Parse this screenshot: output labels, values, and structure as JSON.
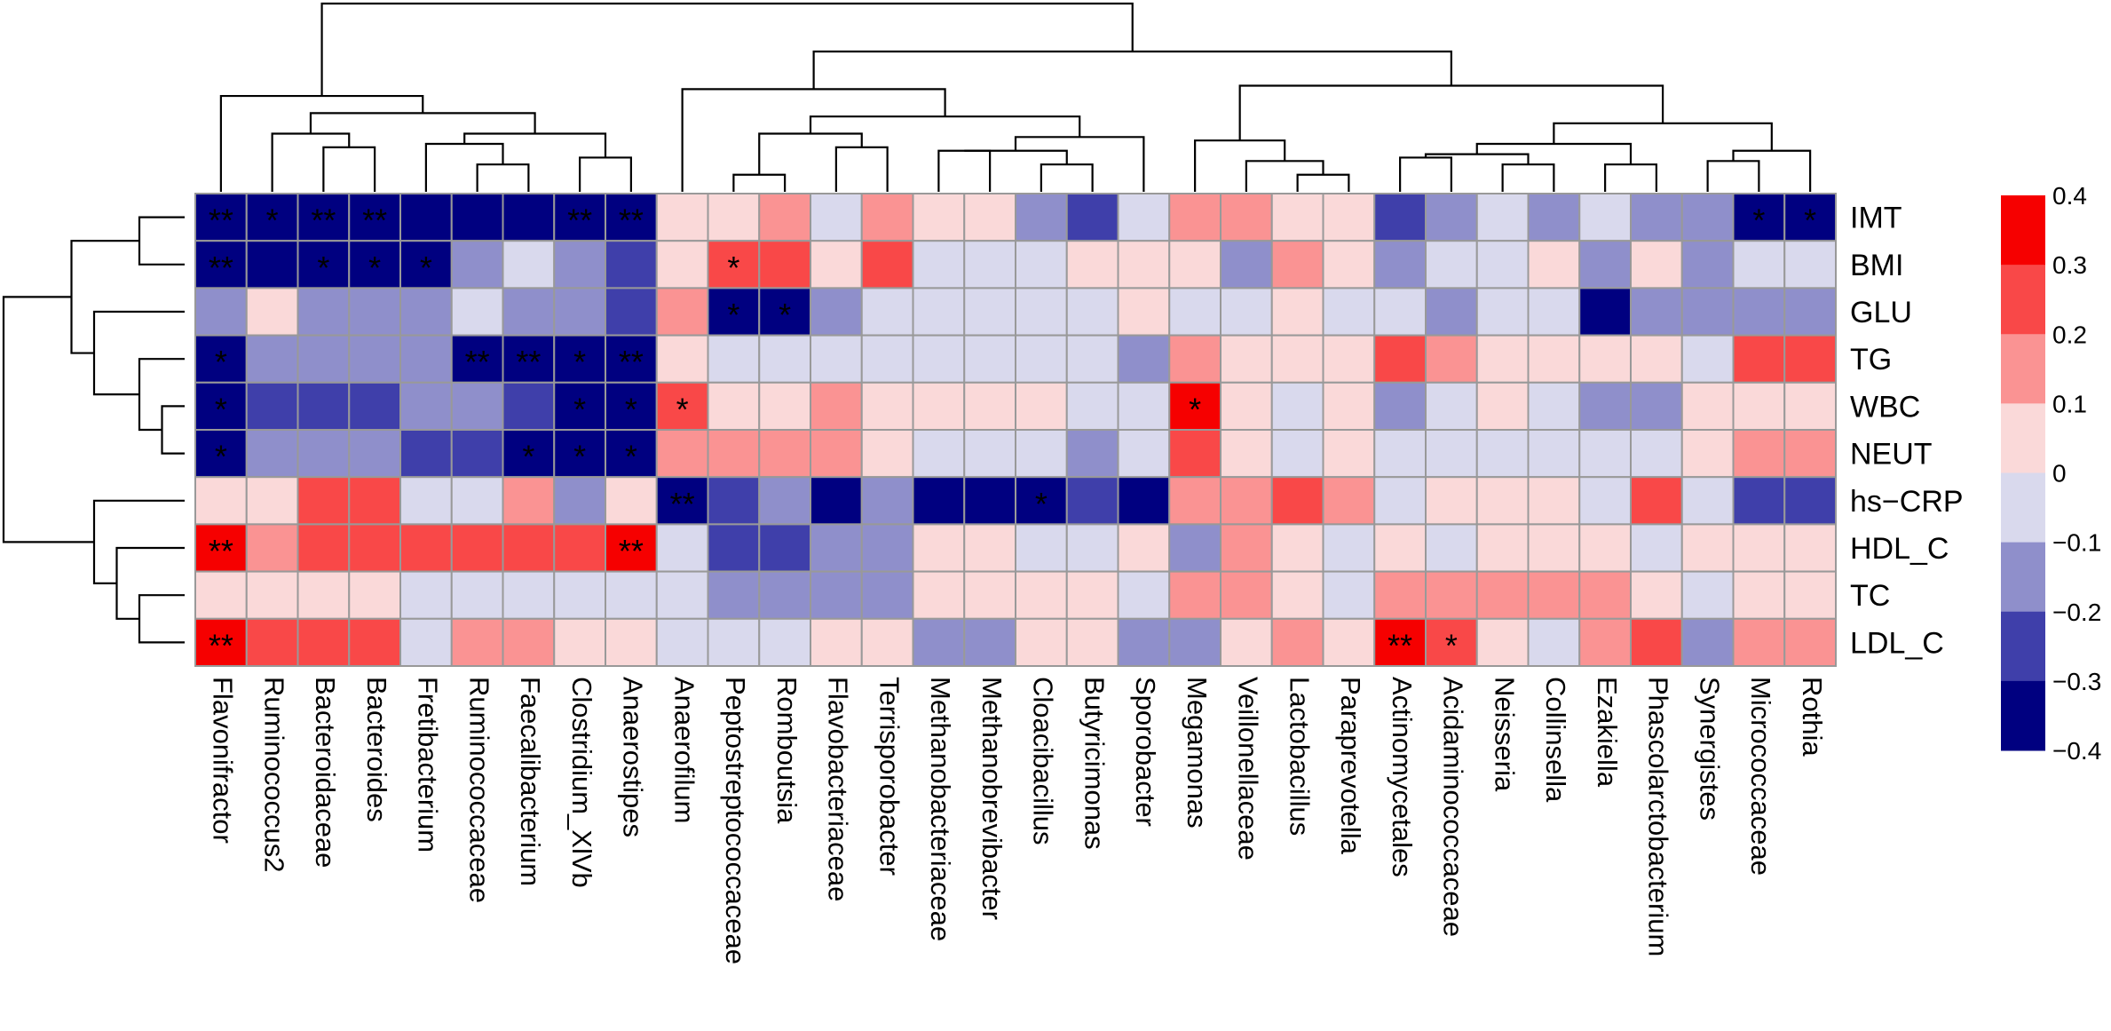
{
  "chart_data": {
    "type": "heatmap",
    "title": "",
    "xlabel": "",
    "ylabel": "",
    "rows": [
      "IMT",
      "BMI",
      "GLU",
      "TG",
      "WBC",
      "NEUT",
      "hs−CRP",
      "HDL_C",
      "TC",
      "LDL_C"
    ],
    "columns": [
      "Flavonifractor",
      "Ruminococcus2",
      "Bacteroidaceae",
      "Bacteroides",
      "Fretibacterium",
      "Ruminococcaceae",
      "Faecalibacterium",
      "Clostridium_XlVb",
      "Anaerostipes",
      "Anaerofilum",
      "Peptostreptococcaceae",
      "Romboutsia",
      "Flavobacteriaceae",
      "Terrisporobacter",
      "Methanobacteriaceae",
      "Methanobrevibacter",
      "Cloacibacillus",
      "Butyricimonas",
      "Sporobacter",
      "Megamonas",
      "Veillonellaceae",
      "Lactobacillus",
      "Paraprevotella",
      "Actinomycetales",
      "Acidaminococcaceae",
      "Neisseria",
      "Collinsella",
      "Ezakiella",
      "Phascolarctobacterium",
      "Synergistes",
      "Micrococcaceae",
      "Rothia"
    ],
    "values": [
      [
        -0.4,
        -0.4,
        -0.4,
        -0.4,
        -0.3,
        -0.3,
        -0.3,
        -0.4,
        -0.4,
        0.05,
        0.05,
        0.15,
        -0.05,
        0.15,
        0.05,
        0.05,
        -0.15,
        -0.25,
        -0.05,
        0.15,
        0.15,
        0.05,
        0.05,
        -0.25,
        -0.15,
        -0.05,
        -0.15,
        -0.05,
        -0.15,
        -0.15,
        -0.4,
        -0.4
      ],
      [
        -0.4,
        -0.3,
        -0.3,
        -0.3,
        -0.4,
        -0.15,
        -0.05,
        -0.15,
        -0.25,
        0.05,
        0.25,
        0.25,
        0.05,
        0.25,
        -0.05,
        -0.05,
        -0.05,
        0.05,
        0.05,
        0.05,
        -0.15,
        0.15,
        0.05,
        -0.15,
        -0.05,
        -0.05,
        0.05,
        -0.15,
        0.05,
        -0.15,
        -0.05,
        -0.05
      ],
      [
        -0.15,
        0.05,
        -0.15,
        -0.15,
        -0.15,
        -0.05,
        -0.15,
        -0.15,
        -0.25,
        0.15,
        -0.4,
        -0.4,
        -0.15,
        -0.05,
        -0.05,
        -0.05,
        -0.05,
        -0.05,
        0.05,
        -0.05,
        -0.05,
        0.05,
        -0.05,
        -0.05,
        -0.15,
        -0.05,
        -0.05,
        -0.3,
        -0.15,
        -0.15,
        -0.15,
        -0.15
      ],
      [
        -0.3,
        -0.15,
        -0.15,
        -0.15,
        -0.15,
        -0.4,
        -0.4,
        -0.3,
        -0.4,
        0.05,
        -0.05,
        -0.05,
        -0.05,
        -0.05,
        -0.05,
        -0.05,
        -0.05,
        -0.05,
        -0.15,
        0.15,
        0.05,
        0.05,
        0.05,
        0.25,
        0.15,
        0.05,
        0.05,
        0.05,
        0.05,
        -0.05,
        0.25,
        0.25
      ],
      [
        -0.3,
        -0.25,
        -0.25,
        -0.25,
        -0.15,
        -0.15,
        -0.25,
        -0.3,
        -0.4,
        0.25,
        0.05,
        0.05,
        0.15,
        0.05,
        0.05,
        0.05,
        0.05,
        -0.05,
        -0.05,
        0.35,
        0.05,
        -0.05,
        0.05,
        -0.15,
        -0.05,
        0.05,
        -0.05,
        -0.15,
        -0.15,
        0.05,
        0.05,
        0.05
      ],
      [
        -0.4,
        -0.15,
        -0.15,
        -0.15,
        -0.25,
        -0.25,
        -0.3,
        -0.4,
        -0.3,
        0.15,
        0.15,
        0.15,
        0.15,
        0.05,
        -0.05,
        -0.05,
        -0.05,
        -0.15,
        -0.05,
        0.25,
        0.05,
        -0.05,
        0.05,
        -0.05,
        -0.05,
        -0.05,
        -0.05,
        -0.05,
        -0.05,
        0.05,
        0.15,
        0.15
      ],
      [
        0.05,
        0.05,
        0.25,
        0.25,
        -0.05,
        -0.05,
        0.15,
        -0.15,
        0.05,
        -0.4,
        -0.25,
        -0.15,
        -0.4,
        -0.15,
        -0.4,
        -0.4,
        -0.4,
        -0.25,
        -0.4,
        0.15,
        0.15,
        0.25,
        0.15,
        -0.05,
        0.05,
        0.05,
        0.05,
        -0.05,
        0.25,
        -0.05,
        -0.25,
        -0.25
      ],
      [
        0.35,
        0.15,
        0.25,
        0.25,
        0.25,
        0.25,
        0.25,
        0.25,
        0.35,
        -0.05,
        -0.25,
        -0.25,
        -0.15,
        -0.15,
        0.05,
        0.05,
        -0.05,
        -0.05,
        0.05,
        -0.15,
        0.15,
        0.05,
        -0.05,
        0.05,
        -0.05,
        0.05,
        0.05,
        0.05,
        -0.05,
        0.05,
        0.05,
        0.05
      ],
      [
        0.05,
        0.05,
        0.05,
        0.05,
        -0.05,
        -0.05,
        -0.05,
        -0.05,
        -0.05,
        -0.05,
        -0.15,
        -0.15,
        -0.15,
        -0.15,
        0.05,
        0.05,
        0.05,
        0.05,
        -0.05,
        0.15,
        0.15,
        0.05,
        -0.05,
        0.15,
        0.15,
        0.15,
        0.15,
        0.15,
        0.05,
        -0.05,
        0.05,
        0.05
      ],
      [
        0.35,
        0.25,
        0.25,
        0.25,
        -0.05,
        0.15,
        0.15,
        0.05,
        0.05,
        -0.05,
        -0.05,
        -0.05,
        0.05,
        0.05,
        -0.15,
        -0.15,
        0.05,
        0.05,
        -0.15,
        -0.15,
        0.05,
        0.15,
        0.05,
        0.35,
        0.25,
        0.05,
        -0.05,
        0.15,
        0.25,
        -0.15,
        0.15,
        0.15
      ]
    ],
    "significance": [
      [
        "**",
        "*",
        "**",
        "**",
        "",
        "",
        "",
        "**",
        "**",
        "",
        "",
        "",
        "",
        "",
        "",
        "",
        "",
        "",
        "",
        "",
        "",
        "",
        "",
        "",
        "",
        "",
        "",
        "",
        "",
        "",
        "*",
        "*"
      ],
      [
        "**",
        "",
        "*",
        "*",
        "*",
        "",
        "",
        "",
        "",
        "",
        "*",
        "",
        "",
        "",
        "",
        "",
        "",
        "",
        "",
        "",
        "",
        "",
        "",
        "",
        "",
        "",
        "",
        "",
        "",
        "",
        "",
        ""
      ],
      [
        "",
        "",
        "",
        "",
        "",
        "",
        "",
        "",
        "",
        "",
        "*",
        "*",
        "",
        "",
        "",
        "",
        "",
        "",
        "",
        "",
        "",
        "",
        "",
        "",
        "",
        "",
        "",
        "",
        "",
        "",
        "",
        ""
      ],
      [
        "*",
        "",
        "",
        "",
        "",
        "**",
        "**",
        "*",
        "**",
        "",
        "",
        "",
        "",
        "",
        "",
        "",
        "",
        "",
        "",
        "",
        "",
        "",
        "",
        "",
        "",
        "",
        "",
        "",
        "",
        "",
        "",
        ""
      ],
      [
        "*",
        "",
        "",
        "",
        "",
        "",
        "",
        "*",
        "*",
        "*",
        "",
        "",
        "",
        "",
        "",
        "",
        "",
        "",
        "",
        "*",
        "",
        "",
        "",
        "",
        "",
        "",
        "",
        "",
        "",
        "",
        "",
        ""
      ],
      [
        "*",
        "",
        "",
        "",
        "",
        "",
        "*",
        "*",
        "*",
        "",
        "",
        "",
        "",
        "",
        "",
        "",
        "",
        "",
        "",
        "",
        "",
        "",
        "",
        "",
        "",
        "",
        "",
        "",
        "",
        "",
        "",
        ""
      ],
      [
        "",
        "",
        "",
        "",
        "",
        "",
        "",
        "",
        "",
        "**",
        "",
        "",
        "",
        "",
        "",
        "",
        "*",
        "",
        "",
        "",
        "",
        "",
        "",
        "",
        "",
        "",
        "",
        "",
        "",
        "",
        "",
        ""
      ],
      [
        "**",
        "",
        "",
        "",
        "",
        "",
        "",
        "",
        "**",
        "",
        "",
        "",
        "",
        "",
        "",
        "",
        "",
        "",
        "",
        "",
        "",
        "",
        "",
        "",
        "",
        "",
        "",
        "",
        "",
        "",
        "",
        ""
      ],
      [
        "",
        "",
        "",
        "",
        "",
        "",
        "",
        "",
        "",
        "",
        "",
        "",
        "",
        "",
        "",
        "",
        "",
        "",
        "",
        "",
        "",
        "",
        "",
        "",
        "",
        "",
        "",
        "",
        "",
        "",
        "",
        ""
      ],
      [
        "**",
        "",
        "",
        "",
        "",
        "",
        "",
        "",
        "",
        "",
        "",
        "",
        "",
        "",
        "",
        "",
        "",
        "",
        "",
        "",
        "",
        "",
        "",
        "**",
        "*",
        "",
        "",
        "",
        "",
        "",
        "",
        ""
      ]
    ],
    "color_scale": {
      "breaks": [
        -0.4,
        -0.3,
        -0.2,
        -0.1,
        0,
        0.1,
        0.2,
        0.3,
        0.4
      ],
      "colors": [
        "#000080",
        "#3F3FAA",
        "#8F8FCB",
        "#D9D9ED",
        "#FAD9D9",
        "#FA9393",
        "#F94848",
        "#F60000"
      ]
    },
    "legend": {
      "tick_labels": [
        "0.4",
        "0.3",
        "0.2",
        "0.1",
        "0",
        "−0.1",
        "−0.2",
        "−0.3",
        "−0.4"
      ],
      "placement": "right"
    },
    "row_dendrogram": {
      "order": [
        0,
        1,
        2,
        3,
        4,
        5,
        6,
        7,
        8,
        9
      ],
      "merges": [
        [
          -5,
          -6,
          1
        ],
        [
          -4,
          1,
          2
        ],
        [
          -1,
          -2,
          2
        ],
        [
          -3,
          2,
          4
        ],
        [
          3,
          4,
          5
        ],
        [
          -9,
          -10,
          2
        ],
        [
          -8,
          6,
          3
        ],
        [
          -7,
          7,
          4
        ],
        [
          5,
          8,
          8
        ]
      ]
    },
    "col_dendrogram": {
      "order": [
        0,
        1,
        2,
        3,
        4,
        5,
        6,
        7,
        8,
        9,
        10,
        11,
        12,
        13,
        14,
        15,
        16,
        17,
        18,
        19,
        20,
        21,
        22,
        23,
        24,
        25,
        26,
        27,
        28,
        29,
        30,
        31
      ],
      "merges": [
        [
          -6,
          -7,
          0.8
        ],
        [
          -5,
          1,
          1.4
        ],
        [
          -8,
          -9,
          1.0
        ],
        [
          2,
          3,
          1.7
        ],
        [
          -3,
          -4,
          1.3
        ],
        [
          -2,
          5,
          1.7
        ],
        [
          6,
          4,
          2.3
        ],
        [
          -1,
          7,
          2.8
        ],
        [
          -11,
          -12,
          0.5
        ],
        [
          -13,
          -14,
          1.3
        ],
        [
          9,
          10,
          1.7
        ],
        [
          -17,
          -18,
          0.8
        ],
        [
          -15,
          -16,
          1.2
        ],
        [
          13,
          12,
          1.2
        ],
        [
          -19,
          14,
          1.6
        ],
        [
          11,
          15,
          2.2
        ],
        [
          -10,
          16,
          3.0
        ],
        [
          -22,
          -23,
          0.5
        ],
        [
          -21,
          18,
          0.9
        ],
        [
          -20,
          19,
          1.5
        ],
        [
          -29,
          -28,
          0.8
        ],
        [
          -26,
          -27,
          0.8
        ],
        [
          -24,
          -25,
          1.0
        ],
        [
          23,
          22,
          1.1
        ],
        [
          24,
          21,
          1.4
        ],
        [
          -30,
          -31,
          0.9
        ],
        [
          -32,
          26,
          1.2
        ],
        [
          25,
          27,
          2.0
        ],
        [
          20,
          28,
          3.1
        ],
        [
          17,
          29,
          4.1
        ],
        [
          8,
          30,
          5.5
        ]
      ]
    }
  }
}
